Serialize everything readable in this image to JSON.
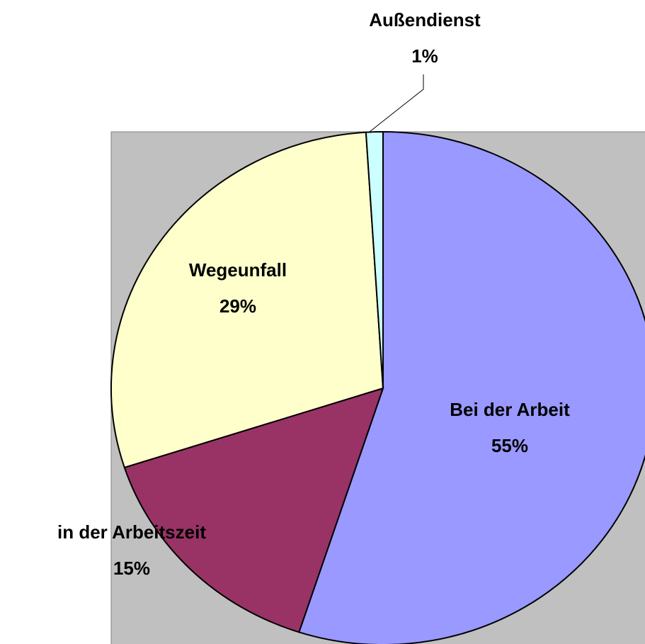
{
  "chart_data": {
    "type": "pie",
    "categories": [
      "Bei der Arbeit",
      "in der Arbeitszeit",
      "Wegeunfall",
      "Außendienst"
    ],
    "values": [
      55,
      15,
      29,
      1
    ],
    "value_labels": [
      "55%",
      "15%",
      "29%",
      "1%"
    ],
    "colors": [
      "#9999ff",
      "#993366",
      "#ffffcc",
      "#ccffff"
    ]
  }
}
